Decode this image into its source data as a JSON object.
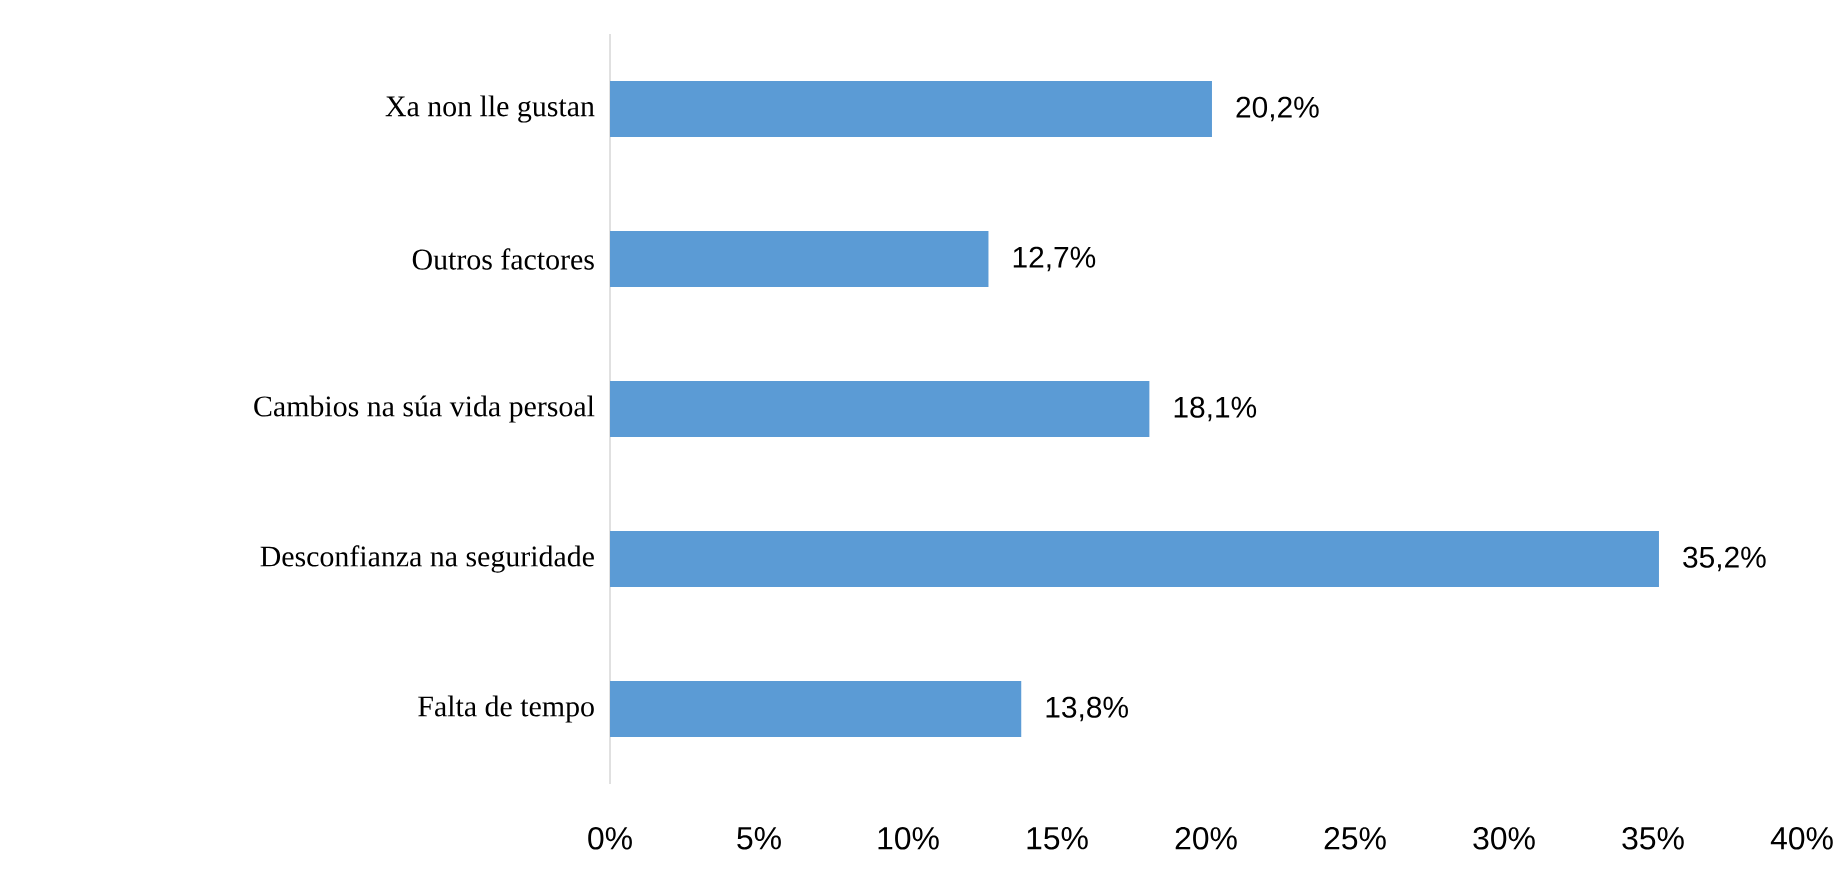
{
  "chart_data": {
    "type": "bar",
    "orientation": "horizontal",
    "categories": [
      "Xa non lle gustan",
      "Outros factores",
      "Cambios na súa vida persoal",
      "Desconfianza na seguridade",
      "Falta de tempo"
    ],
    "values": [
      20.2,
      12.7,
      18.1,
      35.2,
      13.8
    ],
    "value_labels": [
      "20,2%",
      "12,7%",
      "18,1%",
      "35,2%",
      "13,8%"
    ],
    "color": "#5b9bd5",
    "xlim": [
      0,
      40
    ],
    "xticks": [
      {
        "value": 0,
        "label": "0%"
      },
      {
        "value": 5,
        "label": "5%"
      },
      {
        "value": 10,
        "label": "10%"
      },
      {
        "value": 15,
        "label": "15%"
      },
      {
        "value": 20,
        "label": "20%"
      },
      {
        "value": 25,
        "label": "25%"
      },
      {
        "value": 30,
        "label": "30%"
      },
      {
        "value": 35,
        "label": "35%"
      },
      {
        "value": 40,
        "label": "40%"
      }
    ],
    "grid": false
  }
}
